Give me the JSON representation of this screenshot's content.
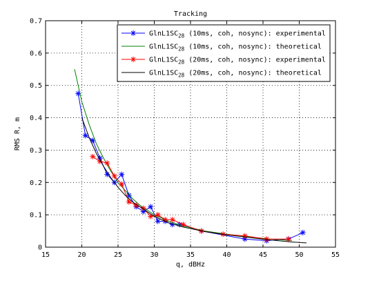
{
  "chart_data": {
    "type": "line",
    "title": "Tracking",
    "xlabel": "q, dBHz",
    "ylabel": "RMS R, m",
    "xlim": [
      15,
      55
    ],
    "ylim": [
      0,
      0.7
    ],
    "xticks": [
      "15",
      "20",
      "25",
      "30",
      "35",
      "40",
      "45",
      "50",
      "55"
    ],
    "yticks": [
      "0",
      "0.1",
      "0.2",
      "0.3",
      "0.4",
      "0.5",
      "0.6",
      "0.7"
    ],
    "grid": true,
    "legend_position": "top-right",
    "series": [
      {
        "name": "GlnL1SC28 (10ms, coh, nosync): experimental",
        "legend_main": "GlnL1SC",
        "legend_sub": "28",
        "legend_rest": " (10ms, coh, nosync): experimental",
        "color": "#0000ff",
        "marker": "star",
        "x": [
          19.5,
          20.5,
          21.5,
          22.5,
          23.5,
          24.5,
          25.5,
          26.5,
          27.5,
          28.5,
          29.5,
          30.5,
          31.5,
          32.5,
          33.5,
          36.5,
          42.5,
          45.5,
          48.5,
          50.5
        ],
        "y": [
          0.475,
          0.345,
          0.33,
          0.275,
          0.225,
          0.2,
          0.225,
          0.16,
          0.125,
          0.11,
          0.125,
          0.08,
          0.08,
          0.07,
          0.07,
          0.05,
          0.025,
          0.02,
          0.025,
          0.045
        ]
      },
      {
        "name": "GlnL1SC28 (10ms, coh, nosync): theoretical",
        "legend_main": "GlnL1SC",
        "legend_sub": "28",
        "legend_rest": " (10ms, coh, nosync): theoretical",
        "color": "#008000",
        "marker": "none",
        "x": [
          19.0,
          20.0,
          21.0,
          22.0,
          23.0,
          24.0,
          25.0,
          26.0,
          27.0,
          28.0,
          29.0,
          30.0,
          32.0,
          34.0,
          37.0,
          40.0,
          43.0,
          46.0,
          49.0
        ],
        "y": [
          0.55,
          0.45,
          0.38,
          0.32,
          0.275,
          0.235,
          0.2,
          0.175,
          0.15,
          0.13,
          0.115,
          0.1,
          0.08,
          0.065,
          0.05,
          0.04,
          0.032,
          0.025,
          0.02
        ]
      },
      {
        "name": "GlnL1SC28 (20ms, coh, nosync): experimental",
        "legend_main": "GlnL1SC",
        "legend_sub": "28",
        "legend_rest": " (20ms, coh, nosync): experimental",
        "color": "#ff0000",
        "marker": "star",
        "x": [
          21.5,
          22.5,
          23.5,
          24.5,
          25.5,
          26.5,
          27.5,
          28.5,
          29.5,
          30.5,
          31.5,
          32.5,
          34.0,
          36.5,
          39.5,
          42.5,
          45.5,
          48.5
        ],
        "y": [
          0.28,
          0.265,
          0.26,
          0.22,
          0.195,
          0.14,
          0.13,
          0.12,
          0.095,
          0.1,
          0.085,
          0.085,
          0.07,
          0.05,
          0.04,
          0.035,
          0.025,
          0.025
        ]
      },
      {
        "name": "GlnL1SC28 (20ms, coh, nosync): theoretical",
        "legend_main": "GlnL1SC",
        "legend_sub": "28",
        "legend_rest": " (20ms, coh, nosync): theoretical",
        "color": "#000000",
        "marker": "none",
        "x": [
          20.0,
          21.0,
          22.0,
          23.0,
          24.0,
          25.0,
          26.0,
          27.0,
          28.0,
          29.0,
          30.0,
          32.0,
          34.0,
          37.0,
          40.0,
          43.0,
          46.0,
          49.0,
          51.0
        ],
        "y": [
          0.4,
          0.34,
          0.29,
          0.25,
          0.215,
          0.185,
          0.16,
          0.14,
          0.125,
          0.11,
          0.095,
          0.075,
          0.062,
          0.048,
          0.038,
          0.03,
          0.022,
          0.016,
          0.013
        ]
      }
    ]
  }
}
